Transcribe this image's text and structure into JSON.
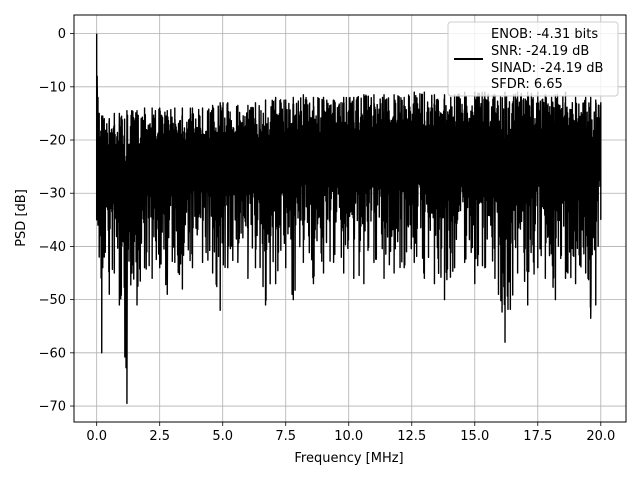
{
  "chart_data": {
    "type": "line",
    "title": "",
    "xlabel": "Frequency [MHz]",
    "ylabel": "PSD [dB]",
    "xlim": [
      -0.9,
      21.0
    ],
    "ylim": [
      -73.0,
      3.5
    ],
    "xticks": [
      0.0,
      2.5,
      5.0,
      7.5,
      10.0,
      12.5,
      15.0,
      17.5,
      20.0
    ],
    "xtick_labels": [
      "0.0",
      "2.5",
      "5.0",
      "7.5",
      "10.0",
      "12.5",
      "15.0",
      "17.5",
      "20.0"
    ],
    "yticks": [
      0,
      -10,
      -20,
      -30,
      -40,
      -50,
      -60,
      -70
    ],
    "ytick_labels": [
      "0",
      "−10",
      "−20",
      "−30",
      "−40",
      "−50",
      "−60",
      "−70"
    ],
    "grid": true,
    "legend_placement": "top-right",
    "legend_lines": [
      "ENOB: -4.31 bits",
      "SNR: -24.19 dB",
      "SINAD: -24.19 dB",
      "SFDR: 6.65"
    ],
    "series": [
      {
        "color": "#000000",
        "x": [
          0.0,
          0.02,
          0.05,
          0.1,
          0.2,
          0.24,
          0.3,
          0.5,
          0.7,
          0.9,
          1.2,
          1.4,
          1.6,
          1.9,
          2.2,
          2.5,
          2.8,
          3.1,
          3.4,
          3.8,
          4.2,
          4.6,
          4.9,
          5.2,
          5.6,
          6.0,
          6.3,
          6.7,
          7.1,
          7.5,
          7.8,
          8.2,
          8.6,
          9.0,
          9.4,
          9.8,
          10.2,
          10.6,
          11.0,
          11.4,
          11.8,
          12.2,
          12.6,
          13.0,
          13.4,
          13.8,
          14.2,
          14.6,
          15.0,
          15.4,
          15.8,
          16.2,
          16.7,
          17.1,
          17.5,
          17.8,
          18.2,
          18.6,
          19.0,
          19.4,
          19.6,
          19.8,
          20.0
        ],
        "upper": [
          0.0,
          -8.0,
          -12.0,
          -15.0,
          -15.5,
          -15.5,
          -16.0,
          -16.0,
          -15.0,
          -15.0,
          -14.5,
          -14.5,
          -14.5,
          -14.0,
          -14.0,
          -14.0,
          -14.5,
          -14.0,
          -14.0,
          -14.0,
          -14.0,
          -13.5,
          -13.0,
          -13.0,
          -13.5,
          -13.5,
          -13.0,
          -12.5,
          -12.0,
          -12.5,
          -12.0,
          -11.5,
          -12.0,
          -12.0,
          -12.5,
          -12.0,
          -12.0,
          -11.5,
          -11.5,
          -11.5,
          -11.5,
          -12.0,
          -11.0,
          -11.0,
          -11.5,
          -11.5,
          -11.5,
          -11.0,
          -11.0,
          -11.0,
          -11.5,
          -11.0,
          -11.0,
          -11.0,
          -11.0,
          -11.5,
          -11.5,
          -11.0,
          -12.0,
          -12.0,
          -12.0,
          -12.5,
          -13.0
        ],
        "lower": [
          -35.0,
          -33.0,
          -36.0,
          -42.0,
          -60.0,
          -44.0,
          -42.0,
          -49.0,
          -45.0,
          -51.0,
          -69.5,
          -45.0,
          -51.0,
          -44.0,
          -46.0,
          -44.0,
          -49.0,
          -43.0,
          -48.0,
          -44.0,
          -43.0,
          -45.0,
          -52.0,
          -44.0,
          -43.0,
          -46.0,
          -44.0,
          -51.0,
          -47.0,
          -44.0,
          -50.0,
          -43.0,
          -47.0,
          -45.0,
          -43.0,
          -45.0,
          -46.0,
          -47.0,
          -43.0,
          -46.0,
          -45.0,
          -44.0,
          -43.0,
          -46.0,
          -47.0,
          -50.0,
          -44.0,
          -43.0,
          -47.0,
          -44.0,
          -46.0,
          -58.0,
          -45.0,
          -51.0,
          -44.0,
          -46.0,
          -50.0,
          -46.0,
          -47.0,
          -45.0,
          -53.5,
          -51.0,
          -35.0
        ]
      }
    ]
  }
}
